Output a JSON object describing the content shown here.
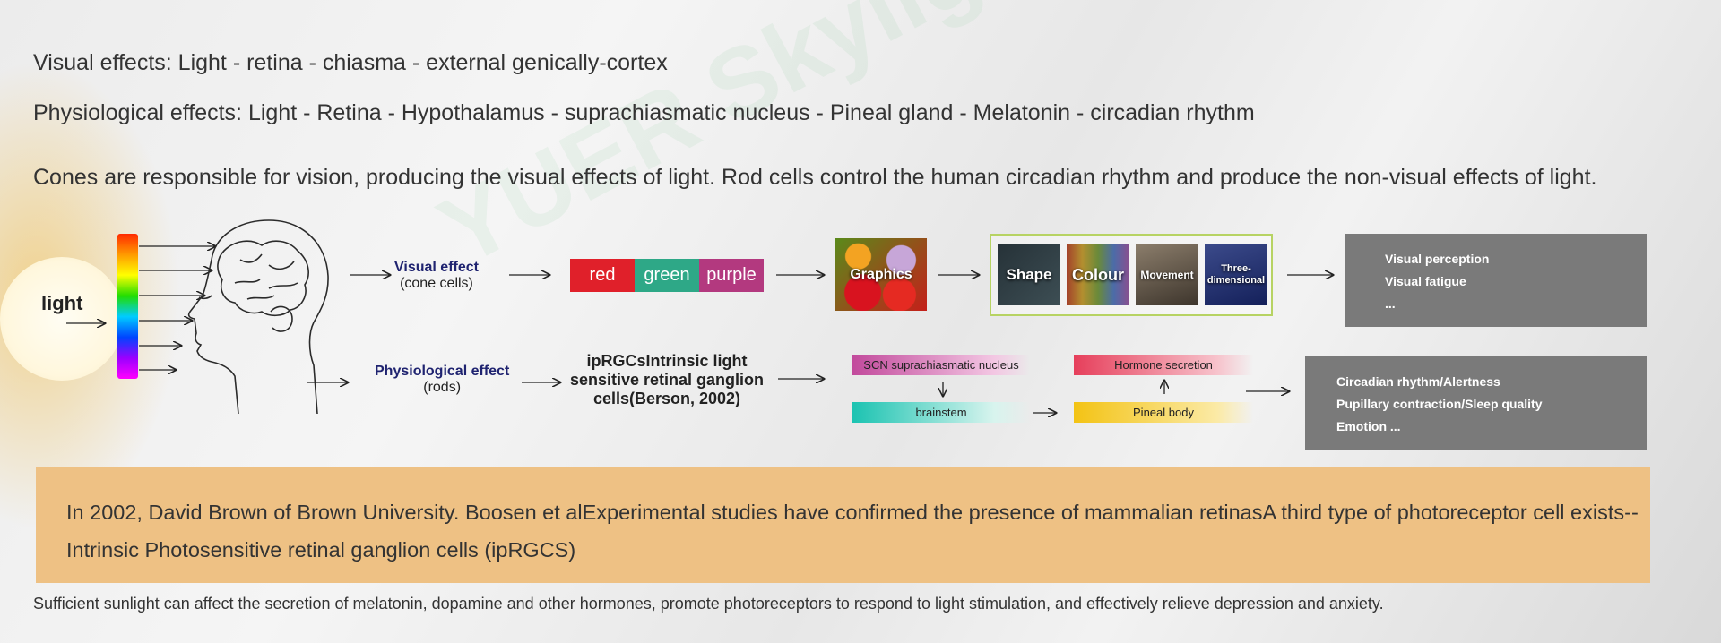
{
  "lines": {
    "visual_path": "Visual effects: Light - retina - chiasma - external genically-cortex",
    "physio_path": "Physiological effects: Light - Retina - Hypothalamus - suprachiasmatic nucleus - Pineal gland - Melatonin - circadian rhythm",
    "cones_rods": "Cones are responsible for vision, producing the visual effects of light. Rod cells control the human circadian rhythm and produce the non-visual effects of light."
  },
  "watermark": "YUER Skylight",
  "diagram": {
    "light_label": "light",
    "visual": {
      "title": "Visual effect",
      "subtitle": "(cone cells)",
      "colors": [
        "red",
        "green",
        "purple"
      ],
      "graphics_label": "Graphics",
      "categories": [
        "Shape",
        "Colour",
        "Movement",
        "Three-dimensional"
      ],
      "outcomes": [
        "Visual perception",
        "Visual fatigue",
        "..."
      ]
    },
    "physiological": {
      "title": "Physiological effect",
      "subtitle": "(rods)",
      "iprgc": "ipRGCsIntrinsic light sensitive retinal ganglion cells(Berson, 2002)",
      "scn": "SCN suprachiasmatic nucleus",
      "brainstem": "brainstem",
      "hormone": "Hormone secretion",
      "pineal": "Pineal body",
      "outcomes": [
        "Circadian rhythm/Alertness",
        "Pupillary contraction/Sleep quality",
        "Emotion ..."
      ]
    }
  },
  "note": "In 2002, David Brown of Brown University. Boosen et alExperimental studies have confirmed the presence of mammalian retinasA third type of photoreceptor cell exists-- Intrinsic Photosensitive retinal ganglion cells (ipRGCS)",
  "footer": "Sufficient sunlight can affect the secretion of melatonin, dopamine and other hormones, promote photoreceptors to respond to light stimulation, and effectively relieve depression and anxiety.",
  "colors": {
    "note_bg": "#eec184",
    "grey_box": "#7a7a7a",
    "label_blue": "#1f2370",
    "red": "#e0202a",
    "green": "#2ea887",
    "purple": "#b3397f"
  }
}
